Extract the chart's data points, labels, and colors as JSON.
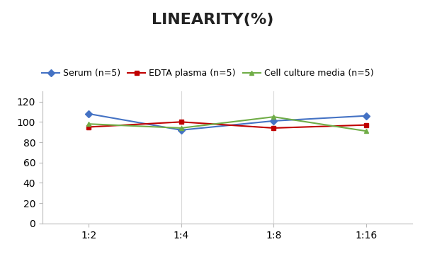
{
  "title": "LINEARITY(%)",
  "x_labels": [
    "1:2",
    "1:4",
    "1:8",
    "1:16"
  ],
  "x_positions": [
    0,
    1,
    2,
    3
  ],
  "series": [
    {
      "label": "Serum (n=5)",
      "values": [
        108,
        92,
        101,
        106
      ],
      "color": "#4472C4",
      "marker": "D",
      "markersize": 5
    },
    {
      "label": "EDTA plasma (n=5)",
      "values": [
        95,
        100,
        94,
        97
      ],
      "color": "#C00000",
      "marker": "s",
      "markersize": 5
    },
    {
      "label": "Cell culture media (n=5)",
      "values": [
        98,
        94,
        105,
        91
      ],
      "color": "#70AD47",
      "marker": "^",
      "markersize": 5
    }
  ],
  "ylim": [
    0,
    130
  ],
  "yticks": [
    0,
    20,
    40,
    60,
    80,
    100,
    120
  ],
  "background_color": "#ffffff",
  "grid_color": "#d9d9d9",
  "title_fontsize": 16,
  "legend_fontsize": 9,
  "tick_fontsize": 10
}
